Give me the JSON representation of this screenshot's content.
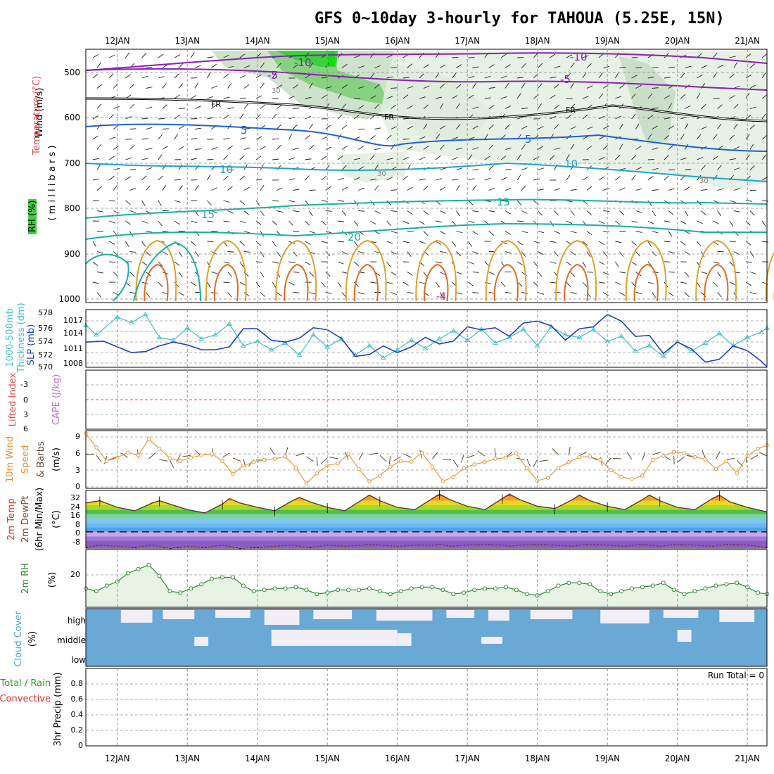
{
  "header": {
    "title": "GFS 0~10day 3-hourly for TAHOUA (5.25E, 15N)"
  },
  "time_axis": {
    "day_labels": [
      "12JAN",
      "13JAN",
      "14JAN",
      "15JAN",
      "16JAN",
      "17JAN",
      "18JAN",
      "19JAN",
      "20JAN",
      "21JAN"
    ],
    "start_day_offset": -0.45,
    "end_day_offset": 9.28
  },
  "colors": {
    "temp_contour": "#8b1fb5",
    "freezing": "#000000",
    "cool_contour": "#1e5fd6",
    "mid_contour": "#1fa3c8",
    "warm_contour": "#19b0a0",
    "hot_contour": "#e1a02a",
    "rh_light": "#dff0dc",
    "rh_mid": "#9fd39a",
    "rh_high": "#3dd13d",
    "thickness": "#3fc0c8",
    "slp": "#1f3fc8",
    "lifted_index_zero": "#e05050",
    "wind_speed": "#e89a3c",
    "rh2m": "#2e8b2e",
    "rh2m_fill": "#e7f4e4",
    "cloud": "#6aa9d6",
    "cloud_clear": "#f1eef6"
  },
  "panels": {
    "upper": {
      "ylabel_wind": "Wind (m/s)",
      "ylabel_temp": "Temperature (°C)",
      "ylabel_rh": "RH (%)",
      "ylabel_mb": "( m i l l i b a r s )",
      "y_ticks": [
        "500",
        "600",
        "700",
        "800",
        "900",
        "1000"
      ],
      "contour_labels": [
        "-10",
        "-5",
        "FR",
        "5",
        "10",
        "15",
        "20",
        "30",
        "-10",
        "-5",
        "FR",
        "5",
        "10",
        "15",
        "20",
        "30",
        "-4",
        "4"
      ]
    },
    "thickness": {
      "ylabel_left": "1000-500mb",
      "ylabel_left2": "Thickness (dm)",
      "ylabel_right": "SLP (mb)",
      "left_ticks": [
        "578",
        "576",
        "574",
        "572",
        "570"
      ],
      "right_ticks": [
        "1017",
        "1014",
        "1011",
        "1008"
      ]
    },
    "li": {
      "ylabel_1": "Lifted Index",
      "ylabel_2": "CAPE (J/kg)",
      "ticks": [
        "-3",
        "0",
        "3",
        "6"
      ]
    },
    "wind10": {
      "ylabel_1": "10m Wind",
      "ylabel_2": "Speed",
      "ylabel_3": "& Barbs",
      "ylabel_unit": "(m/s)",
      "ticks": [
        "9",
        "6",
        "3",
        "0"
      ]
    },
    "temp2m": {
      "ylabel_1": "2m Temp",
      "ylabel_2": "2m DewPt",
      "ylabel_3": "(6hr Min/Max)",
      "ylabel_unit": "(°C)",
      "ticks": [
        "32",
        "24",
        "16",
        "8",
        "0",
        "-8"
      ]
    },
    "rh2m": {
      "ylabel": "2m RH",
      "ylabel_unit": "(%)",
      "ticks": [
        "20"
      ]
    },
    "cloud": {
      "ylabel": "Cloud Cover",
      "ylabel_unit": "(%)",
      "levels": [
        "high",
        "middle",
        "low"
      ]
    },
    "precip": {
      "ylabel_1": "3hr Precip (mm)",
      "ylabel_2": "Total / Rain",
      "ylabel_3": "Convective",
      "ticks": [
        "0.8",
        "0.6",
        "0.4",
        "0.2",
        "0"
      ],
      "run_total": "Run Total = 0"
    }
  },
  "chart_data": [
    {
      "type": "line",
      "name": "1000-500mb Thickness / SLP",
      "x_unit": "day offset from 12JAN 00Z",
      "series": [
        {
          "name": "Thickness (dm)",
          "x": [
            -0.45,
            -0.3,
            0,
            0.2,
            0.4,
            0.6,
            0.8,
            1,
            1.2,
            1.4,
            1.6,
            1.8,
            2,
            2.2,
            2.4,
            2.6,
            2.8,
            3,
            3.2,
            3.4,
            3.6,
            3.8,
            4,
            4.2,
            4.4,
            4.6,
            4.8,
            5,
            5.2,
            5.4,
            5.6,
            5.8,
            6,
            6.2,
            6.4,
            6.6,
            6.8,
            7,
            7.2,
            7.4,
            7.6,
            7.8,
            8,
            8.2,
            8.4,
            8.6,
            8.8,
            9,
            9.2,
            9.28
          ],
          "values": [
            576.2,
            574.8,
            577.4,
            576.6,
            577.8,
            574.4,
            574.0,
            575.8,
            574.2,
            574.8,
            576.4,
            573.2,
            573.8,
            572.6,
            573.6,
            571.8,
            574.8,
            573.0,
            574.2,
            571.8,
            573.2,
            571.4,
            572.6,
            574.0,
            572.8,
            574.2,
            575.4,
            574.0,
            575.6,
            573.6,
            574.4,
            575.6,
            573.2,
            576.0,
            574.8,
            574.4,
            575.6,
            573.8,
            574.6,
            572.4,
            573.2,
            571.6,
            573.8,
            572.4,
            573.6,
            575.0,
            573.2,
            574.4,
            575.2,
            575.8
          ]
        },
        {
          "name": "SLP (mb)",
          "x": [
            -0.45,
            -0.2,
            0,
            0.2,
            0.4,
            0.6,
            0.8,
            1,
            1.2,
            1.4,
            1.6,
            1.8,
            2,
            2.2,
            2.4,
            2.6,
            2.8,
            3,
            3.2,
            3.4,
            3.6,
            3.8,
            4,
            4.2,
            4.4,
            4.6,
            4.8,
            5,
            5.2,
            5.4,
            5.6,
            5.8,
            6,
            6.2,
            6.4,
            6.6,
            6.8,
            7,
            7.2,
            7.4,
            7.6,
            7.8,
            8,
            8.2,
            8.4,
            8.6,
            8.8,
            9,
            9.2,
            9.28
          ],
          "values": [
            1012.4,
            1012.6,
            1011.4,
            1010.2,
            1010.4,
            1011.6,
            1012.4,
            1011.8,
            1010.8,
            1010.8,
            1011.4,
            1015.2,
            1015.2,
            1012.8,
            1012.4,
            1013.2,
            1015.4,
            1015.0,
            1013.2,
            1009.4,
            1009.8,
            1011.6,
            1010.2,
            1011.4,
            1013.4,
            1012.0,
            1012.6,
            1015.6,
            1015.0,
            1015.4,
            1013.6,
            1016.4,
            1016.8,
            1015.8,
            1012.8,
            1015.2,
            1015.6,
            1018.2,
            1016.8,
            1013.6,
            1013.8,
            1010.0,
            1012.4,
            1011.0,
            1008.2,
            1008.8,
            1011.6,
            1010.6,
            1008.4,
            1007.2
          ]
        }
      ]
    },
    {
      "type": "line",
      "name": "10m Wind Speed (m/s)",
      "x": [
        -0.45,
        -0.3,
        -0.15,
        0,
        0.15,
        0.3,
        0.45,
        0.6,
        0.75,
        0.9,
        1.05,
        1.2,
        1.35,
        1.5,
        1.65,
        1.8,
        1.95,
        2.1,
        2.25,
        2.4,
        2.55,
        2.7,
        2.85,
        3.0,
        3.15,
        3.3,
        3.45,
        3.6,
        3.75,
        3.9,
        4.05,
        4.2,
        4.35,
        4.5,
        4.65,
        4.8,
        4.95,
        5.1,
        5.25,
        5.4,
        5.55,
        5.7,
        5.85,
        6.0,
        6.15,
        6.3,
        6.45,
        6.6,
        6.75,
        6.9,
        7.05,
        7.2,
        7.35,
        7.5,
        7.65,
        7.8,
        7.95,
        8.1,
        8.25,
        8.4,
        8.55,
        8.7,
        8.85,
        9.0,
        9.15,
        9.28
      ],
      "values": [
        9.5,
        7.0,
        4.6,
        5.2,
        6.1,
        5.6,
        8.5,
        6.8,
        5.1,
        4.6,
        5.2,
        5.6,
        5.9,
        4.6,
        2.3,
        3.8,
        4.4,
        4.8,
        5.0,
        5.4,
        3.4,
        0.6,
        2.4,
        3.8,
        4.2,
        5.8,
        3.2,
        1.0,
        2.0,
        3.6,
        4.6,
        4.5,
        6.1,
        3.6,
        1.0,
        1.8,
        3.3,
        4.0,
        4.4,
        5.0,
        5.2,
        6.0,
        3.3,
        1.1,
        1.6,
        3.4,
        4.4,
        5.3,
        5.4,
        4.8,
        3.0,
        1.8,
        1.4,
        2.0,
        4.8,
        5.5,
        6.2,
        6.0,
        5.3,
        4.9,
        3.2,
        4.6,
        2.4,
        5.5,
        6.8,
        7.4
      ],
      "ylim": [
        0,
        9.5
      ]
    },
    {
      "type": "area",
      "name": "2m Temp (°C)",
      "x": [
        -0.45,
        -0.25,
        0,
        0.25,
        0.5,
        0.6,
        0.75,
        1,
        1.25,
        1.5,
        1.6,
        1.75,
        2,
        2.25,
        2.5,
        2.6,
        2.75,
        3,
        3.25,
        3.5,
        3.6,
        3.75,
        4,
        4.25,
        4.5,
        4.6,
        4.75,
        5,
        5.25,
        5.5,
        5.6,
        5.75,
        6,
        6.25,
        6.5,
        6.6,
        6.75,
        7,
        7.25,
        7.5,
        7.6,
        7.75,
        8,
        8.25,
        8.5,
        8.6,
        8.75,
        9,
        9.28
      ],
      "values": [
        26,
        28,
        22,
        19,
        26,
        28,
        25,
        20,
        17,
        25,
        30,
        26,
        22,
        19,
        28,
        31,
        27,
        22,
        19,
        29,
        33,
        28,
        22,
        20,
        30,
        34,
        29,
        23,
        20,
        30,
        34,
        29,
        23,
        21,
        29,
        33,
        28,
        23,
        20,
        29,
        33,
        28,
        22,
        20,
        30,
        33,
        27,
        22,
        18
      ],
      "dewpoint": [
        -14,
        -12,
        -13,
        -14,
        -12,
        -13,
        -15,
        -13,
        -14,
        -12,
        -13,
        -15,
        -14,
        -13,
        -12,
        -13,
        -14,
        -12,
        -13,
        -12,
        -11,
        -12,
        -13,
        -12,
        -12,
        -11,
        -13,
        -12,
        -11,
        -12,
        -13,
        -12,
        -11,
        -12,
        -13,
        -12,
        -11,
        -12,
        -13,
        -11,
        -12,
        -13,
        -11,
        -12,
        -13,
        -12,
        -11,
        -12,
        -14
      ],
      "ylim": [
        -14,
        36
      ]
    },
    {
      "type": "area",
      "name": "2m RH (%)",
      "x": [
        -0.45,
        -0.3,
        -0.15,
        0,
        0.15,
        0.3,
        0.45,
        0.6,
        0.75,
        0.9,
        1.05,
        1.2,
        1.35,
        1.5,
        1.65,
        1.8,
        1.95,
        2.1,
        2.25,
        2.4,
        2.55,
        2.7,
        2.85,
        3.0,
        3.15,
        3.3,
        3.45,
        3.6,
        3.75,
        3.9,
        4.05,
        4.2,
        4.35,
        4.5,
        4.65,
        4.8,
        4.95,
        5.1,
        5.25,
        5.4,
        5.55,
        5.7,
        5.85,
        6.0,
        6.15,
        6.3,
        6.45,
        6.6,
        6.75,
        6.9,
        7.05,
        7.2,
        7.35,
        7.5,
        7.65,
        7.8,
        7.95,
        8.1,
        8.25,
        8.4,
        8.55,
        8.7,
        8.85,
        9.0,
        9.15,
        9.28
      ],
      "values": [
        13,
        11,
        15,
        18,
        24,
        27,
        30,
        22,
        11,
        10,
        13,
        16,
        20,
        21,
        21,
        15,
        11,
        12,
        13,
        13,
        14,
        12,
        9,
        10,
        12,
        12,
        12,
        13,
        11,
        9,
        11,
        13,
        14,
        14,
        12,
        9,
        10,
        12,
        13,
        13,
        14,
        12,
        9,
        8,
        11,
        15,
        17,
        17,
        16,
        11,
        9,
        11,
        13,
        14,
        15,
        17,
        12,
        9,
        11,
        13,
        15,
        16,
        17,
        14,
        10,
        9
      ],
      "ylim": [
        0,
        40
      ]
    },
    {
      "type": "bar",
      "name": "3hr Precip (mm)",
      "values": [],
      "ylim": [
        0,
        0.9
      ]
    }
  ]
}
